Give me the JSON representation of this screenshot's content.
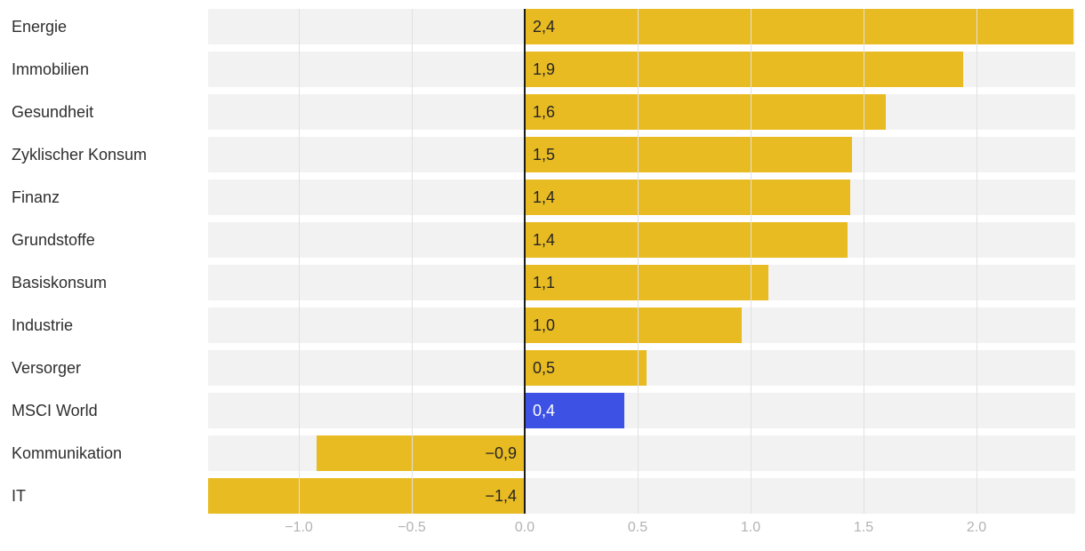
{
  "chart_data": {
    "type": "bar",
    "orientation": "horizontal",
    "title": "",
    "xlabel": "",
    "ylabel": "",
    "categories": [
      "Energie",
      "Immobilien",
      "Gesundheit",
      "Zyklischer Konsum",
      "Finanz",
      "Grundstoffe",
      "Basiskonsum",
      "Industrie",
      "Versorger",
      "MSCI World",
      "Kommunikation",
      "IT"
    ],
    "values": [
      2.4,
      1.9,
      1.6,
      1.5,
      1.4,
      1.4,
      1.1,
      1.0,
      0.5,
      0.4,
      -0.9,
      -1.4
    ],
    "value_labels": [
      "2,4",
      "1,9",
      "1,6",
      "1,5",
      "1,4",
      "1,4",
      "1,1",
      "1,0",
      "0,5",
      "0,4",
      "−0,9",
      "−1,4"
    ],
    "bar_lengths": [
      2.43,
      1.94,
      1.6,
      1.45,
      1.44,
      1.43,
      1.08,
      0.96,
      0.54,
      0.44,
      -0.92,
      -1.4
    ],
    "highlight_index": 9,
    "highlight_category": "MSCI World",
    "axis": {
      "range": [
        -1.41,
        2.45
      ],
      "ticks": [
        -1.0,
        -0.5,
        0.0,
        0.5,
        1.0,
        1.5,
        2.0
      ],
      "tick_labels": [
        "−1.0",
        "−0.5",
        "0.0",
        "0.5",
        "1.0",
        "1.5",
        "2.0"
      ],
      "grid": true,
      "zero_line": true
    },
    "legend": null,
    "colors": {
      "bar": "#E9BB22",
      "highlight": "#3D51E5",
      "row_background": "#F2F2F2",
      "gridline": "#E1E1E1",
      "zero_line": "#1A1A1A",
      "category_label": "#2E2E2E",
      "value_label": "#262626",
      "value_label_on_highlight": "#FFFFFF",
      "tick_label": "#B3B3B3"
    }
  }
}
